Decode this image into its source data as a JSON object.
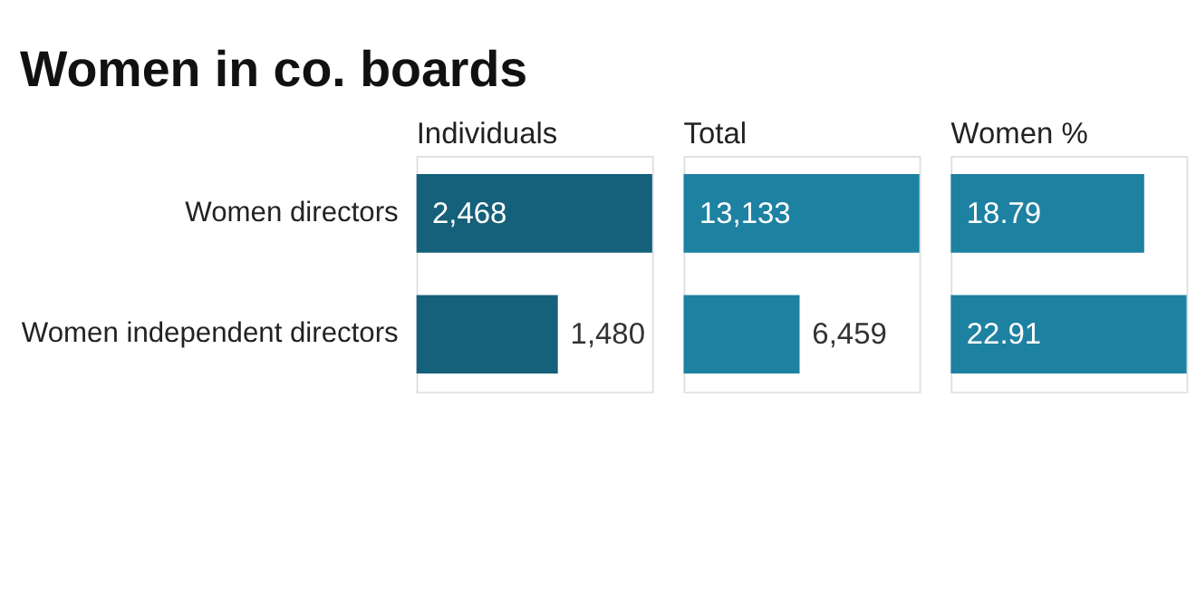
{
  "chart_data": [
    {
      "type": "other",
      "title": "Women in co. boards"
    },
    {
      "type": "bar",
      "orientation": "horizontal",
      "title": "Individuals",
      "categories": [
        "Women directors",
        "Women independent directors"
      ],
      "values": [
        2468,
        1480
      ],
      "value_labels": [
        "2,468",
        "1,480"
      ],
      "color": "#15607a"
    },
    {
      "type": "bar",
      "orientation": "horizontal",
      "title": "Total",
      "categories": [
        null,
        null
      ],
      "values": [
        13133,
        6459
      ],
      "value_labels": [
        "13,133",
        "6,459"
      ],
      "color": "#1d81a2"
    },
    {
      "type": "bar",
      "orientation": "horizontal",
      "title": "Women %",
      "categories": [
        null,
        null
      ],
      "values": [
        18.79,
        22.91
      ],
      "value_labels": [
        "18.79",
        "22.91"
      ],
      "color": "#1d81a2"
    }
  ]
}
